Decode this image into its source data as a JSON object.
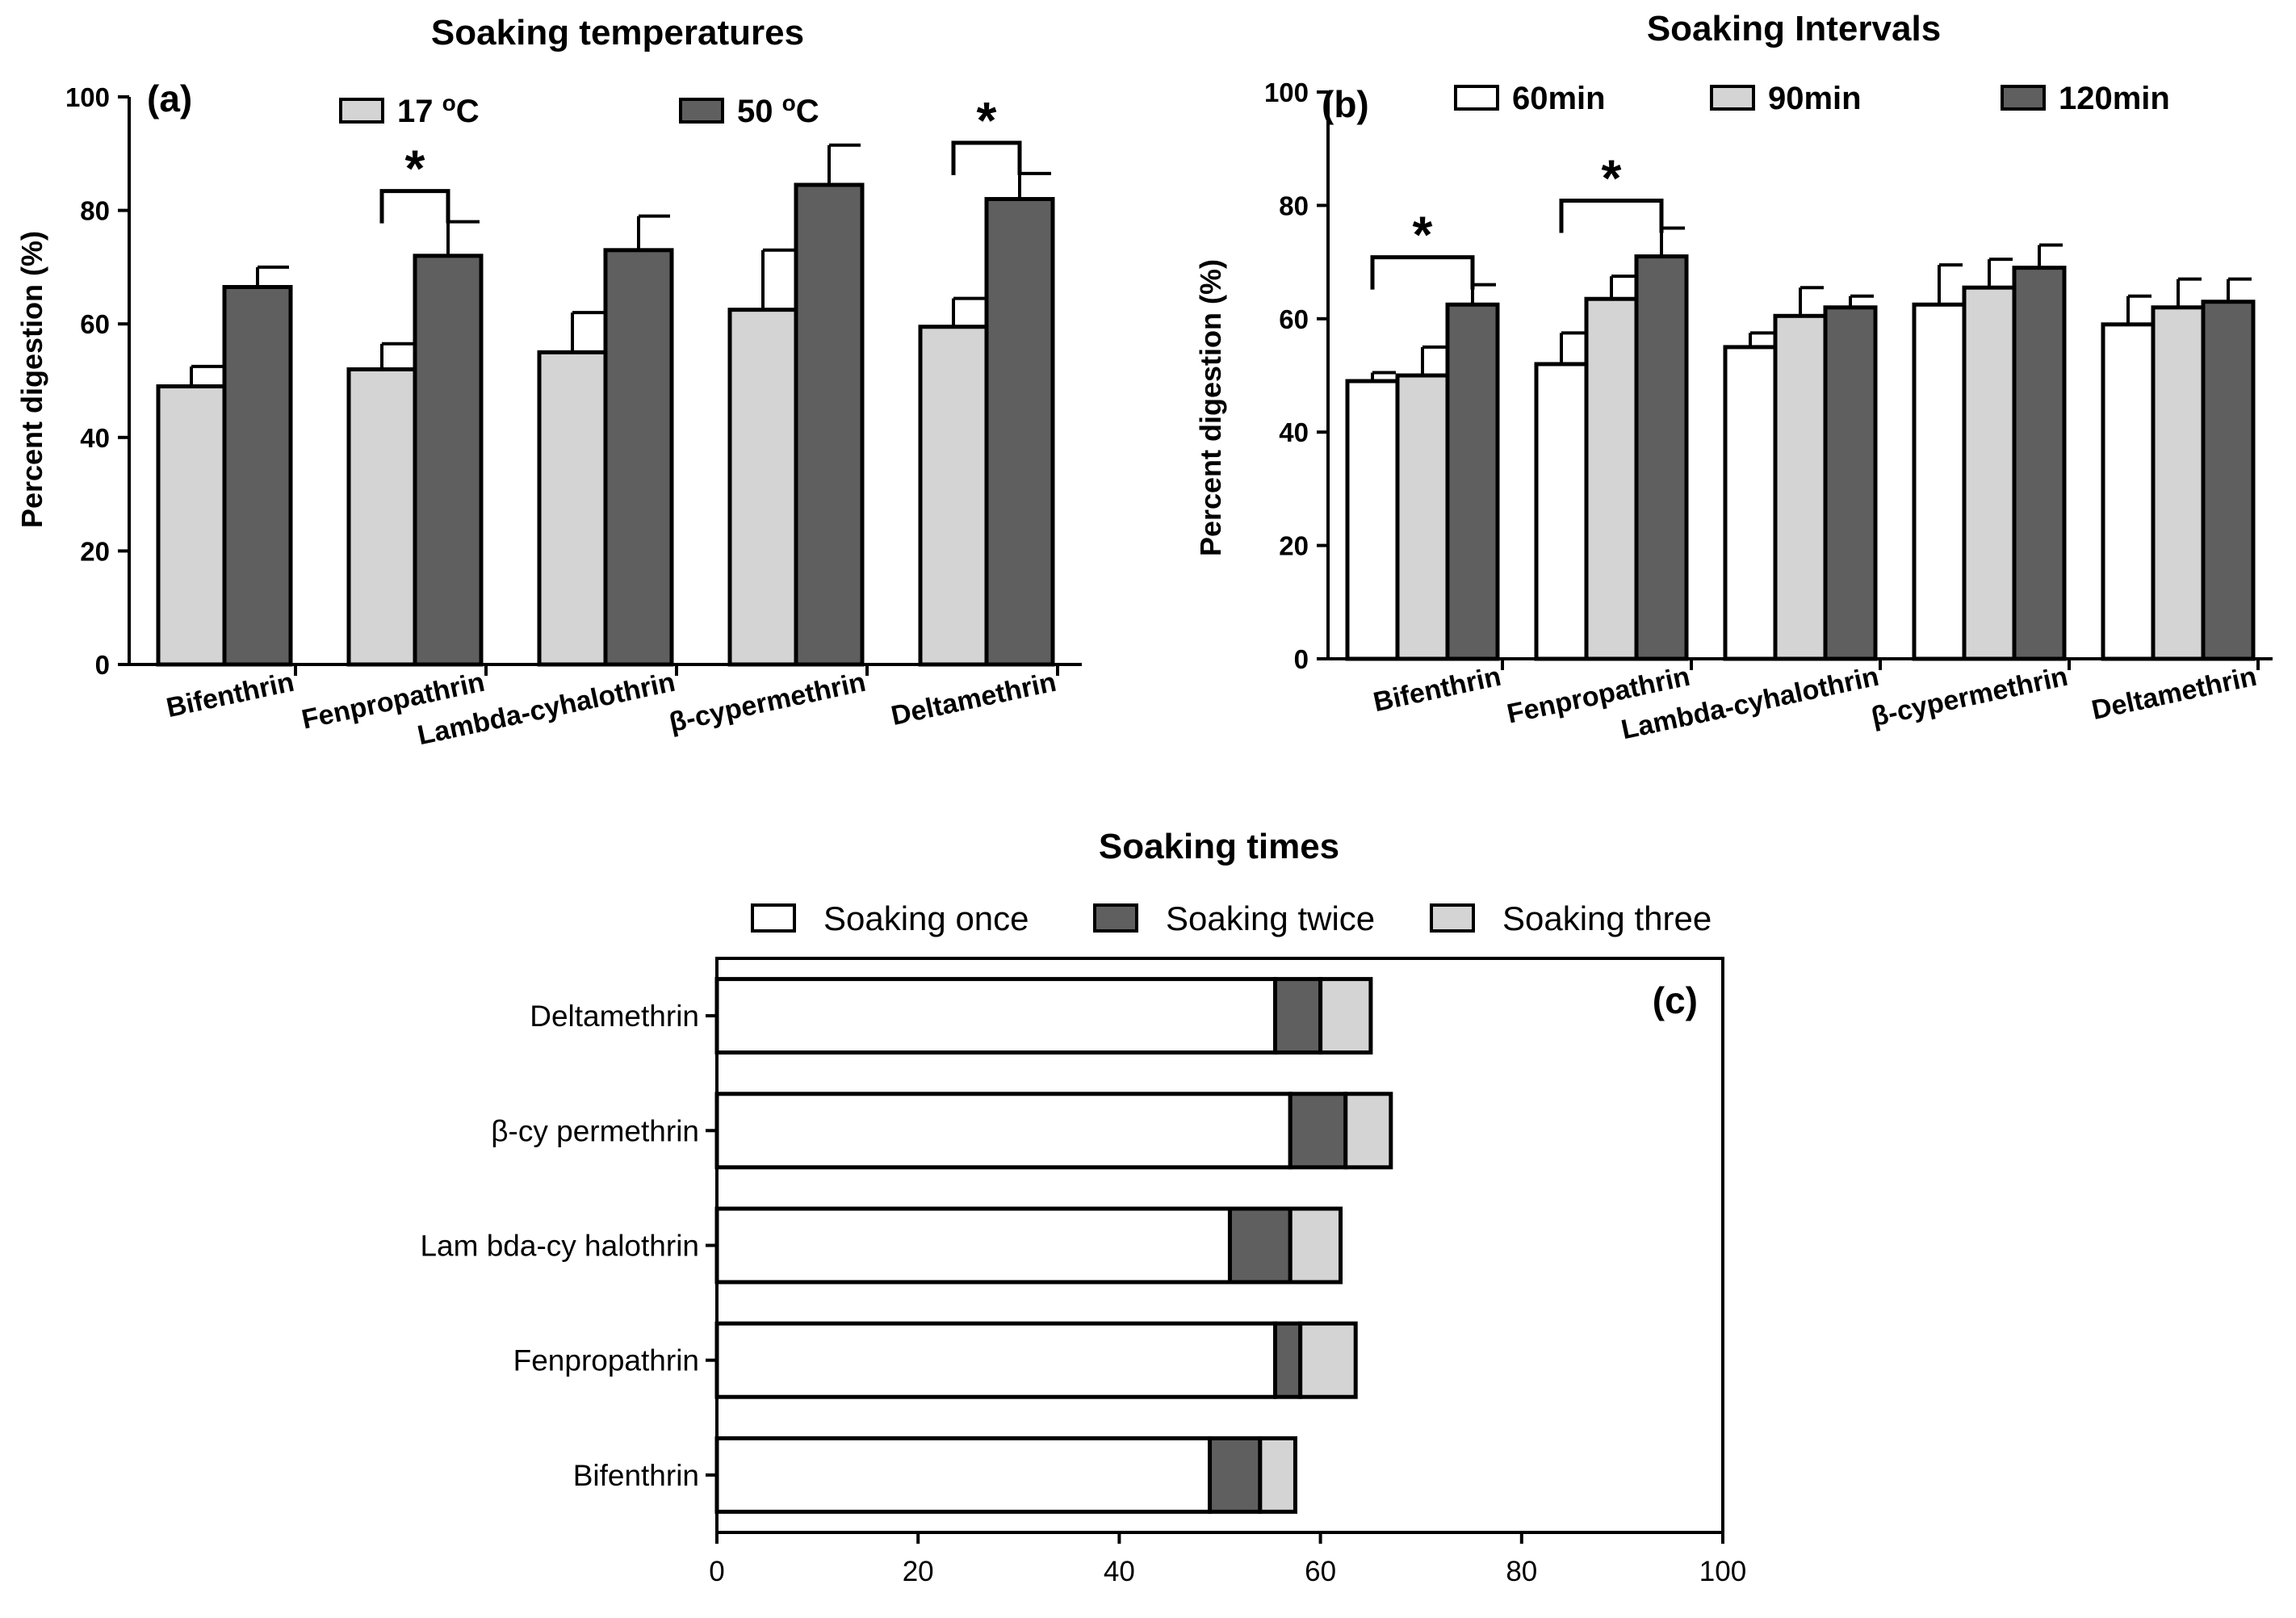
{
  "figure": {
    "background": "#ffffff",
    "colors": {
      "light": "#d4d4d4",
      "dark": "#5f5f5f",
      "white": "#ffffff",
      "stroke": "#000000"
    }
  },
  "chart_data": [
    {
      "id": "a",
      "type": "bar",
      "title": "Soaking temperatures",
      "panel_label": "(a)",
      "ylabel": "Percent digestion (%)",
      "xlabel": "",
      "ylim": [
        0,
        100
      ],
      "yticks": [
        "0",
        "20",
        "40",
        "60",
        "80",
        "100"
      ],
      "categories": [
        "Bifenthrin",
        "Fenpropathrin",
        "Lambda-cyhalothrin",
        "β-cypermethrin",
        "Deltamethrin"
      ],
      "series": [
        {
          "name": "17 ºC",
          "color": "#d4d4d4",
          "values": [
            49,
            52,
            55,
            62.5,
            59.5
          ],
          "errors": [
            3.5,
            4.5,
            7,
            10.5,
            5
          ]
        },
        {
          "name": "50 ºC",
          "color": "#5f5f5f",
          "values": [
            66.5,
            72,
            73,
            84.5,
            82
          ],
          "errors": [
            3.5,
            6,
            6,
            7,
            4.5
          ]
        }
      ],
      "significance": [
        {
          "category": 1,
          "label": "*"
        },
        {
          "category": 4,
          "label": "*"
        }
      ],
      "legend": "top",
      "grid": false
    },
    {
      "id": "b",
      "type": "bar",
      "title": "Soaking Intervals",
      "panel_label": "(b)",
      "ylabel": "Percent digestion (%)",
      "xlabel": "",
      "ylim": [
        0,
        100
      ],
      "yticks": [
        "0",
        "20",
        "40",
        "60",
        "80",
        "100"
      ],
      "categories": [
        "Bifenthrin",
        "Fenpropathrin",
        "Lambda-cyhalothrin",
        "β-cypermethrin",
        "Deltamethrin"
      ],
      "series": [
        {
          "name": "60min",
          "color": "#ffffff",
          "values": [
            49,
            52,
            55,
            62.5,
            59
          ],
          "errors": [
            1.5,
            5.5,
            2.5,
            7,
            5
          ]
        },
        {
          "name": "90min",
          "color": "#d4d4d4",
          "values": [
            50,
            63.5,
            60.5,
            65.5,
            62
          ],
          "errors": [
            5,
            4,
            5,
            5,
            5
          ]
        },
        {
          "name": "120min",
          "color": "#5f5f5f",
          "values": [
            62.5,
            71,
            62,
            69,
            63
          ],
          "errors": [
            3.5,
            5,
            2,
            4,
            4
          ]
        }
      ],
      "significance": [
        {
          "category": 0,
          "label": "*"
        },
        {
          "category": 1,
          "label": "*"
        }
      ],
      "legend": "top",
      "grid": false
    },
    {
      "id": "c",
      "type": "bar",
      "orientation": "horizontal",
      "stacked": true,
      "title": "Soaking times",
      "panel_label": "(c)",
      "xlabel": "",
      "ylabel": "",
      "xlim": [
        0,
        100
      ],
      "xticks": [
        "0",
        "20",
        "40",
        "60",
        "80",
        "100"
      ],
      "categories": [
        "Deltamethrin",
        "β-cy permethrin",
        "Lam bda-cy halothrin",
        "Fenpropathrin",
        "Bifenthrin"
      ],
      "series": [
        {
          "name": "Soaking once",
          "color": "#ffffff",
          "values": [
            55.5,
            57,
            51,
            55.5,
            49
          ]
        },
        {
          "name": "Soaking twice",
          "color": "#5f5f5f",
          "values": [
            4.5,
            5.5,
            6,
            2.5,
            5
          ]
        },
        {
          "name": "Soaking three",
          "color": "#d4d4d4",
          "values": [
            5,
            4.5,
            5,
            5.5,
            3.5
          ]
        }
      ],
      "legend": "top",
      "grid": false
    }
  ]
}
